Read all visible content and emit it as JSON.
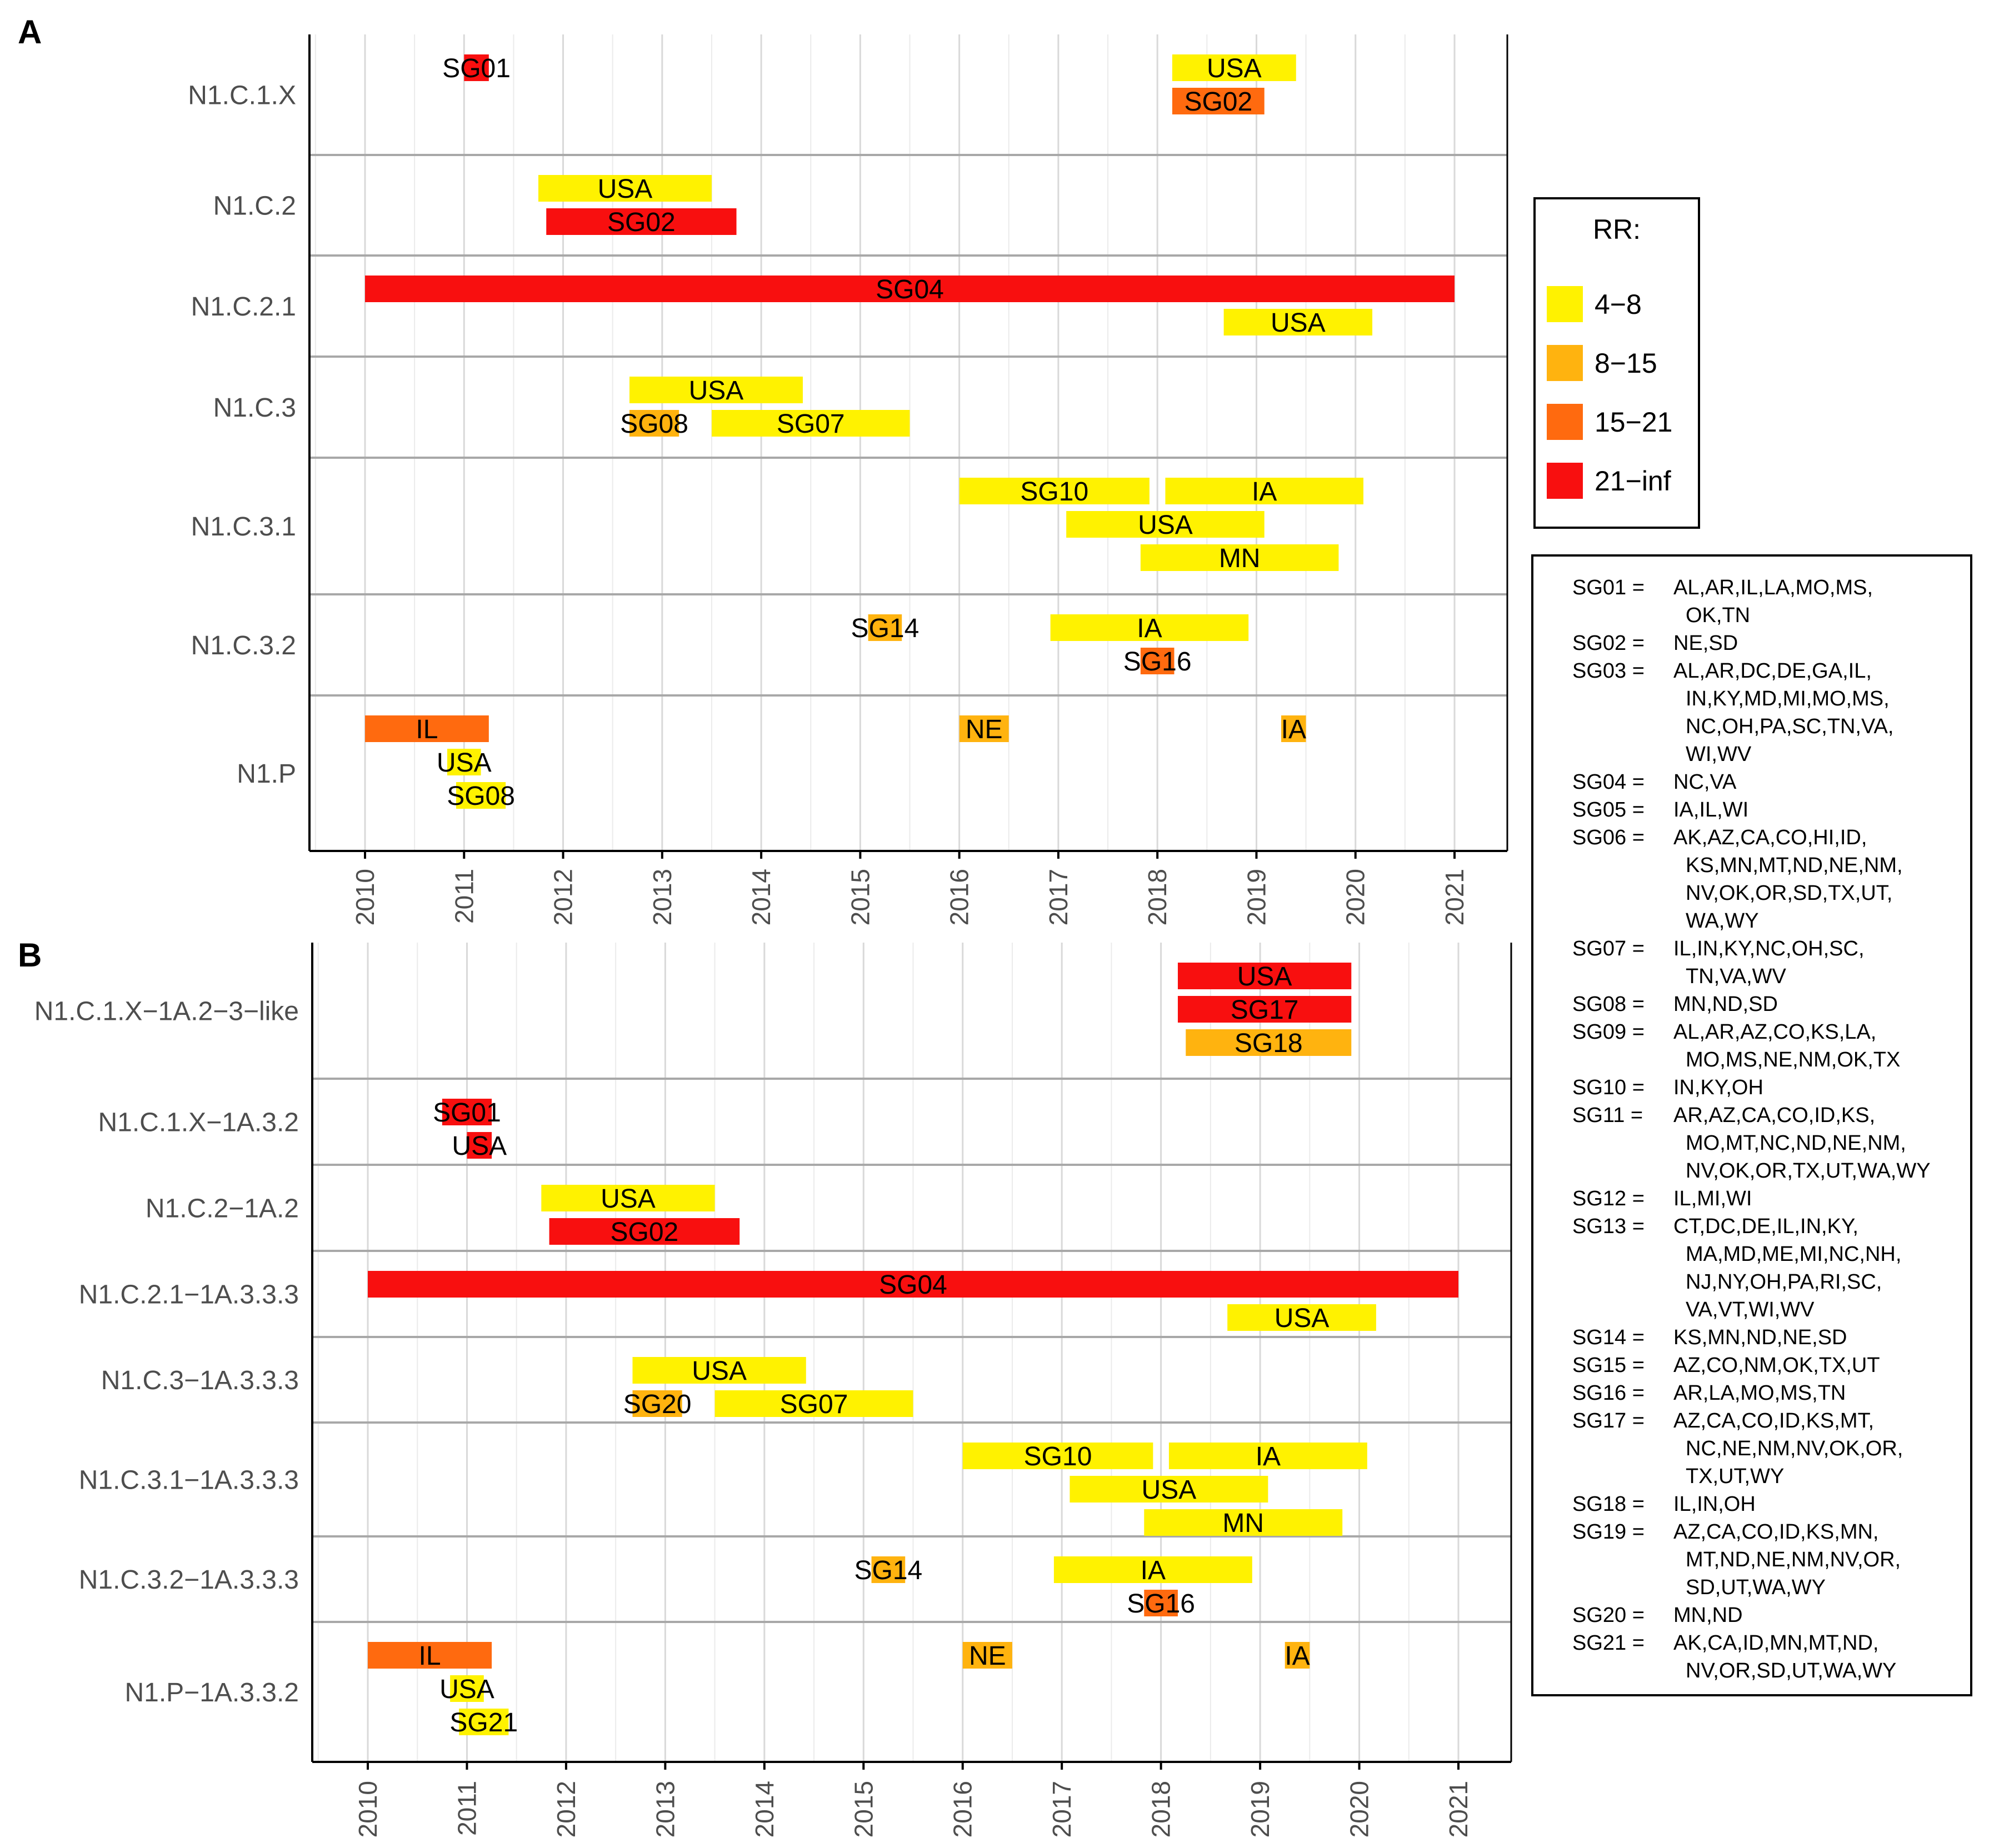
{
  "chart_data": [
    {
      "type": "timeline",
      "panel_label": "A",
      "xlim": [
        2010,
        2021
      ],
      "x_ticks": [
        "2010",
        "2011",
        "2012",
        "2013",
        "2014",
        "2015",
        "2016",
        "2017",
        "2018",
        "2019",
        "2020",
        "2021"
      ],
      "grid": true,
      "rows": [
        {
          "label": "N1.C.1.X",
          "bars": [
            {
              "text": "SG01",
              "start": 2011.0,
              "end": 2011.25,
              "rr": "21-inf"
            },
            {
              "text": "USA",
              "start": 2018.15,
              "end": 2019.4,
              "rr": "4-8"
            },
            {
              "text": "SG02",
              "start": 2018.15,
              "end": 2019.08,
              "rr": "15-21"
            }
          ]
        },
        {
          "label": "N1.C.2",
          "bars": [
            {
              "text": "USA",
              "start": 2011.75,
              "end": 2013.5,
              "rr": "4-8"
            },
            {
              "text": "SG02",
              "start": 2011.83,
              "end": 2013.75,
              "rr": "21-inf"
            }
          ]
        },
        {
          "label": "N1.C.2.1",
          "bars": [
            {
              "text": "SG04",
              "start": 2010.0,
              "end": 2021.0,
              "rr": "21-inf"
            },
            {
              "text": "USA",
              "start": 2018.67,
              "end": 2020.17,
              "rr": "4-8"
            }
          ]
        },
        {
          "label": "N1.C.3",
          "bars": [
            {
              "text": "USA",
              "start": 2012.67,
              "end": 2014.42,
              "rr": "4-8"
            },
            {
              "text": "SG08",
              "start": 2012.67,
              "end": 2013.17,
              "rr": "8-15"
            },
            {
              "text": "SG07",
              "start": 2013.5,
              "end": 2015.5,
              "rr": "4-8"
            }
          ]
        },
        {
          "label": "N1.C.3.1",
          "bars": [
            {
              "text": "SG10",
              "start": 2016.0,
              "end": 2017.92,
              "rr": "4-8"
            },
            {
              "text": "IA",
              "start": 2018.08,
              "end": 2020.08,
              "rr": "4-8"
            },
            {
              "text": "USA",
              "start": 2017.08,
              "end": 2019.08,
              "rr": "4-8"
            },
            {
              "text": "MN",
              "start": 2017.83,
              "end": 2019.83,
              "rr": "4-8"
            }
          ]
        },
        {
          "label": "N1.C.3.2",
          "bars": [
            {
              "text": "SG14",
              "start": 2015.08,
              "end": 2015.42,
              "rr": "8-15"
            },
            {
              "text": "IA",
              "start": 2016.92,
              "end": 2018.92,
              "rr": "4-8"
            },
            {
              "text": "SG16",
              "start": 2017.83,
              "end": 2018.17,
              "rr": "15-21"
            }
          ]
        },
        {
          "label": "N1.P",
          "bars": [
            {
              "text": "IL",
              "start": 2010.0,
              "end": 2011.25,
              "rr": "15-21"
            },
            {
              "text": "NE",
              "start": 2016.0,
              "end": 2016.5,
              "rr": "8-15"
            },
            {
              "text": "IA",
              "start": 2019.25,
              "end": 2019.5,
              "rr": "8-15"
            },
            {
              "text": "USA",
              "start": 2010.83,
              "end": 2011.17,
              "rr": "4-8"
            },
            {
              "text": "SG08",
              "start": 2010.92,
              "end": 2011.42,
              "rr": "4-8"
            }
          ]
        }
      ]
    },
    {
      "type": "timeline",
      "panel_label": "B",
      "xlim": [
        2010,
        2021
      ],
      "x_ticks": [
        "2010",
        "2011",
        "2012",
        "2013",
        "2014",
        "2015",
        "2016",
        "2017",
        "2018",
        "2019",
        "2020",
        "2021"
      ],
      "grid": true,
      "rows": [
        {
          "label": "N1.C.1.X−1A.2−3−like",
          "bars": [
            {
              "text": "USA",
              "start": 2018.17,
              "end": 2019.92,
              "rr": "21-inf"
            },
            {
              "text": "SG17",
              "start": 2018.17,
              "end": 2019.92,
              "rr": "21-inf"
            },
            {
              "text": "SG18",
              "start": 2018.25,
              "end": 2019.92,
              "rr": "8-15"
            }
          ]
        },
        {
          "label": "N1.C.1.X−1A.3.2",
          "bars": [
            {
              "text": "SG01",
              "start": 2010.75,
              "end": 2011.25,
              "rr": "21-inf"
            },
            {
              "text": "USA",
              "start": 2011.0,
              "end": 2011.25,
              "rr": "21-inf"
            }
          ]
        },
        {
          "label": "N1.C.2−1A.2",
          "bars": [
            {
              "text": "USA",
              "start": 2011.75,
              "end": 2013.5,
              "rr": "4-8"
            },
            {
              "text": "SG02",
              "start": 2011.83,
              "end": 2013.75,
              "rr": "21-inf"
            }
          ]
        },
        {
          "label": "N1.C.2.1−1A.3.3.3",
          "bars": [
            {
              "text": "SG04",
              "start": 2010.0,
              "end": 2021.0,
              "rr": "21-inf"
            },
            {
              "text": "USA",
              "start": 2018.67,
              "end": 2020.17,
              "rr": "4-8"
            }
          ]
        },
        {
          "label": "N1.C.3−1A.3.3.3",
          "bars": [
            {
              "text": "USA",
              "start": 2012.67,
              "end": 2014.42,
              "rr": "4-8"
            },
            {
              "text": "SG20",
              "start": 2012.67,
              "end": 2013.17,
              "rr": "8-15"
            },
            {
              "text": "SG07",
              "start": 2013.5,
              "end": 2015.5,
              "rr": "4-8"
            }
          ]
        },
        {
          "label": "N1.C.3.1−1A.3.3.3",
          "bars": [
            {
              "text": "SG10",
              "start": 2016.0,
              "end": 2017.92,
              "rr": "4-8"
            },
            {
              "text": "IA",
              "start": 2018.08,
              "end": 2020.08,
              "rr": "4-8"
            },
            {
              "text": "USA",
              "start": 2017.08,
              "end": 2019.08,
              "rr": "4-8"
            },
            {
              "text": "MN",
              "start": 2017.83,
              "end": 2019.83,
              "rr": "4-8"
            }
          ]
        },
        {
          "label": "N1.C.3.2−1A.3.3.3",
          "bars": [
            {
              "text": "SG14",
              "start": 2015.08,
              "end": 2015.42,
              "rr": "8-15"
            },
            {
              "text": "IA",
              "start": 2016.92,
              "end": 2018.92,
              "rr": "4-8"
            },
            {
              "text": "SG16",
              "start": 2017.83,
              "end": 2018.17,
              "rr": "15-21"
            }
          ]
        },
        {
          "label": "N1.P−1A.3.3.2",
          "bars": [
            {
              "text": "IL",
              "start": 2010.0,
              "end": 2011.25,
              "rr": "15-21"
            },
            {
              "text": "NE",
              "start": 2016.0,
              "end": 2016.5,
              "rr": "8-15"
            },
            {
              "text": "IA",
              "start": 2019.25,
              "end": 2019.5,
              "rr": "8-15"
            },
            {
              "text": "USA",
              "start": 2010.83,
              "end": 2011.17,
              "rr": "4-8"
            },
            {
              "text": "SG21",
              "start": 2010.92,
              "end": 2011.42,
              "rr": "4-8"
            }
          ]
        }
      ]
    }
  ],
  "legend": {
    "title": "RR:",
    "placement": "right",
    "items": [
      {
        "label": "4−8",
        "key": "4-8",
        "color": "#FFF200"
      },
      {
        "label": "8−15",
        "key": "8-15",
        "color": "#FFB30F"
      },
      {
        "label": "15−21",
        "key": "15-21",
        "color": "#FF6A0F"
      },
      {
        "label": "21−inf",
        "key": "21-inf",
        "color": "#F80F0F"
      }
    ]
  },
  "sg_key": [
    {
      "code": "SG01",
      "lines": [
        "AL,AR,IL,LA,MO,MS,",
        "OK,TN"
      ]
    },
    {
      "code": "SG02",
      "lines": [
        "NE,SD"
      ]
    },
    {
      "code": "SG03",
      "lines": [
        "AL,AR,DC,DE,GA,IL,",
        "IN,KY,MD,MI,MO,MS,",
        "NC,OH,PA,SC,TN,VA,",
        "WI,WV"
      ]
    },
    {
      "code": "SG04",
      "lines": [
        "NC,VA"
      ]
    },
    {
      "code": "SG05",
      "lines": [
        "IA,IL,WI"
      ]
    },
    {
      "code": "SG06",
      "lines": [
        "AK,AZ,CA,CO,HI,ID,",
        "KS,MN,MT,ND,NE,NM,",
        "NV,OK,OR,SD,TX,UT,",
        "WA,WY"
      ]
    },
    {
      "code": "SG07",
      "lines": [
        "IL,IN,KY,NC,OH,SC,",
        "TN,VA,WV"
      ]
    },
    {
      "code": "SG08",
      "lines": [
        "MN,ND,SD"
      ]
    },
    {
      "code": "SG09",
      "lines": [
        "AL,AR,AZ,CO,KS,LA,",
        "MO,MS,NE,NM,OK,TX"
      ]
    },
    {
      "code": "SG10",
      "lines": [
        "IN,KY,OH"
      ]
    },
    {
      "code": "SG11",
      "lines": [
        "AR,AZ,CA,CO,ID,KS,",
        "MO,MT,NC,ND,NE,NM,",
        "NV,OK,OR,TX,UT,WA,WY"
      ]
    },
    {
      "code": "SG12",
      "lines": [
        "IL,MI,WI"
      ]
    },
    {
      "code": "SG13",
      "lines": [
        "CT,DC,DE,IL,IN,KY,",
        "MA,MD,ME,MI,NC,NH,",
        "NJ,NY,OH,PA,RI,SC,",
        "VA,VT,WI,WV"
      ]
    },
    {
      "code": "SG14",
      "lines": [
        "KS,MN,ND,NE,SD"
      ]
    },
    {
      "code": "SG15",
      "lines": [
        "AZ,CO,NM,OK,TX,UT"
      ]
    },
    {
      "code": "SG16",
      "lines": [
        "AR,LA,MO,MS,TN"
      ]
    },
    {
      "code": "SG17",
      "lines": [
        "AZ,CA,CO,ID,KS,MT,",
        "NC,NE,NM,NV,OK,OR,",
        "TX,UT,WY"
      ]
    },
    {
      "code": "SG18",
      "lines": [
        "IL,IN,OH"
      ]
    },
    {
      "code": "SG19",
      "lines": [
        "AZ,CA,CO,ID,KS,MN,",
        "MT,ND,NE,NM,NV,OR,",
        "SD,UT,WA,WY"
      ]
    },
    {
      "code": "SG20",
      "lines": [
        "MN,ND"
      ]
    },
    {
      "code": "SG21",
      "lines": [
        "AK,CA,ID,MN,MT,ND,",
        "NV,OR,SD,UT,WA,WY"
      ]
    }
  ]
}
